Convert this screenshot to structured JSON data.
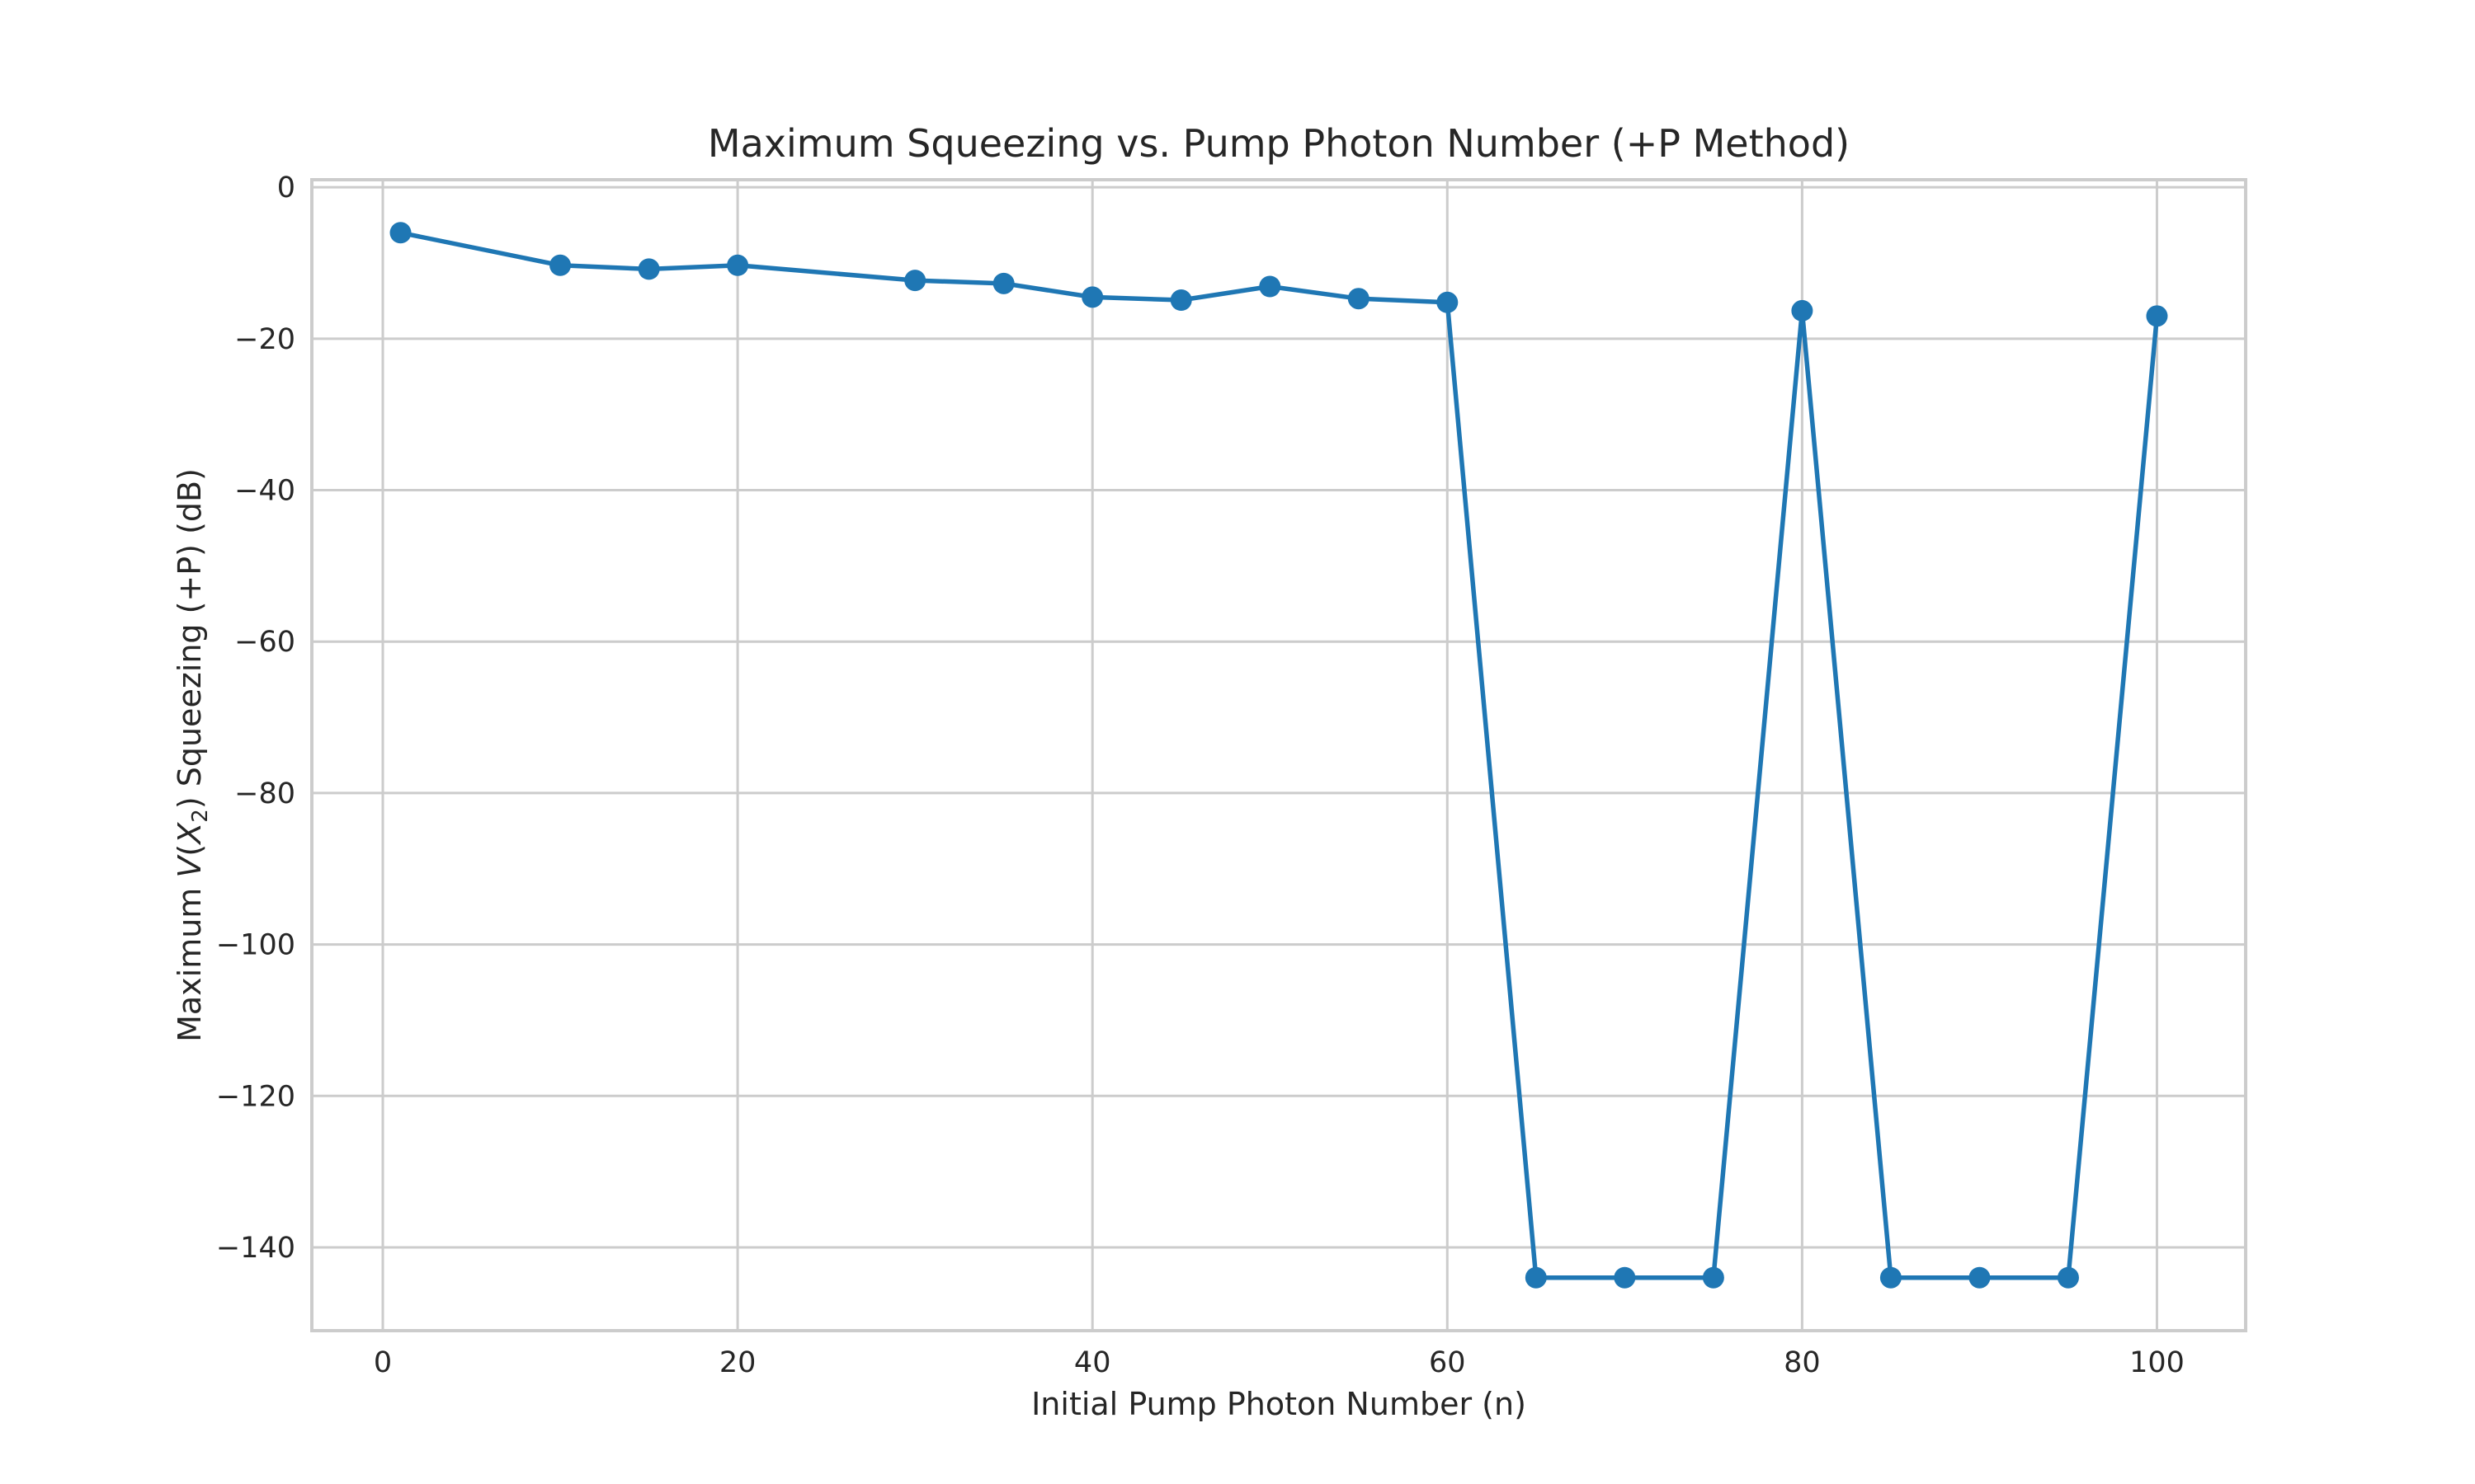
{
  "chart_data": {
    "type": "line",
    "title": "Maximum Squeezing vs. Pump Photon Number (+P Method)",
    "xlabel": "Initial Pump Photon Number (n)",
    "ylabel": {
      "prefix": "Maximum ",
      "math_v": "V",
      "math_open": "(",
      "math_x": "X",
      "math_sub": "2",
      "math_close": ")",
      "suffix": " Squeezing (+P) (dB)"
    },
    "xlim": [
      -4,
      105
    ],
    "ylim": [
      -151,
      1
    ],
    "x_ticks": [
      0,
      20,
      40,
      60,
      80,
      100
    ],
    "x_tick_labels": [
      "0",
      "20",
      "40",
      "60",
      "80",
      "100"
    ],
    "y_ticks": [
      0,
      -20,
      -40,
      -60,
      -80,
      -100,
      -120,
      -140
    ],
    "y_tick_labels": [
      "0",
      "−20",
      "−40",
      "−60",
      "−80",
      "−100",
      "−120",
      "−140"
    ],
    "grid": true,
    "series": [
      {
        "color": "#1f77b4",
        "marker": "circle",
        "x": [
          1,
          10,
          15,
          20,
          30,
          35,
          40,
          45,
          50,
          55,
          60,
          65,
          70,
          75,
          80,
          85,
          90,
          95,
          100
        ],
        "y": [
          -6,
          -10.3,
          -10.8,
          -10.3,
          -12.3,
          -12.7,
          -14.5,
          -14.9,
          -13.1,
          -14.7,
          -15.2,
          -144,
          -144,
          -144,
          -16.3,
          -144,
          -144,
          -144,
          -17
        ]
      }
    ]
  }
}
